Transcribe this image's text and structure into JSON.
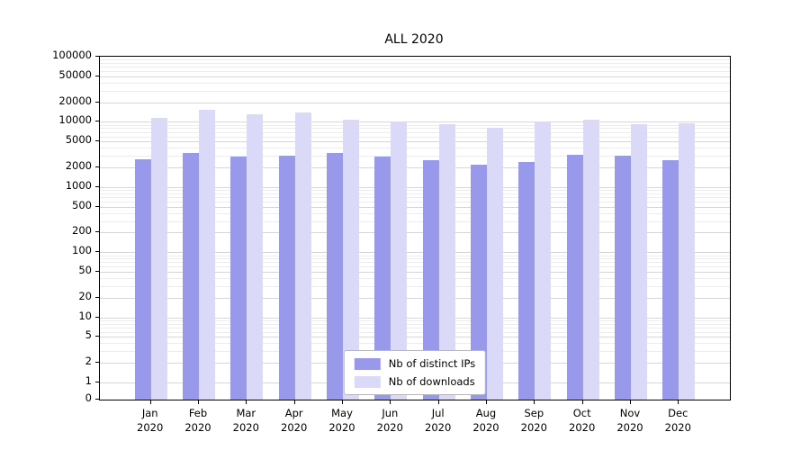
{
  "chart_data": {
    "type": "bar",
    "title": "ALL 2020",
    "categories": [
      "Jan",
      "Feb",
      "Mar",
      "Apr",
      "May",
      "Jun",
      "Jul",
      "Aug",
      "Sep",
      "Oct",
      "Nov",
      "Dec"
    ],
    "category_year": "2020",
    "series": [
      {
        "name": "Nb of distinct IPs",
        "color": "#9999ec",
        "values": [
          2700,
          3300,
          2900,
          3000,
          3300,
          2900,
          2600,
          2200,
          2400,
          3100,
          3000,
          2600
        ]
      },
      {
        "name": "Nb of downloads",
        "color": "#dadaf8",
        "values": [
          11500,
          15500,
          13000,
          14000,
          10800,
          10000,
          9200,
          8100,
          10300,
          10800,
          9300,
          9400
        ]
      }
    ],
    "y_scale": "symlog",
    "ylim": [
      0,
      100000
    ],
    "y_ticks": [
      {
        "label": "100000",
        "value": 100000
      },
      {
        "label": "50000",
        "value": 50000
      },
      {
        "label": "20000",
        "value": 20000
      },
      {
        "label": "10000",
        "value": 10000
      },
      {
        "label": "5000",
        "value": 5000
      },
      {
        "label": "2000",
        "value": 2000
      },
      {
        "label": "1000",
        "value": 1000
      },
      {
        "label": "500",
        "value": 500
      },
      {
        "label": "200",
        "value": 200
      },
      {
        "label": "100",
        "value": 100
      },
      {
        "label": "50",
        "value": 50
      },
      {
        "label": "20",
        "value": 20
      },
      {
        "label": "10",
        "value": 10
      },
      {
        "label": "5",
        "value": 5
      },
      {
        "label": "2",
        "value": 2
      },
      {
        "label": "1",
        "value": 1
      },
      {
        "label": "0",
        "value": 0
      }
    ],
    "grid": true,
    "legend_position": "lower center"
  }
}
